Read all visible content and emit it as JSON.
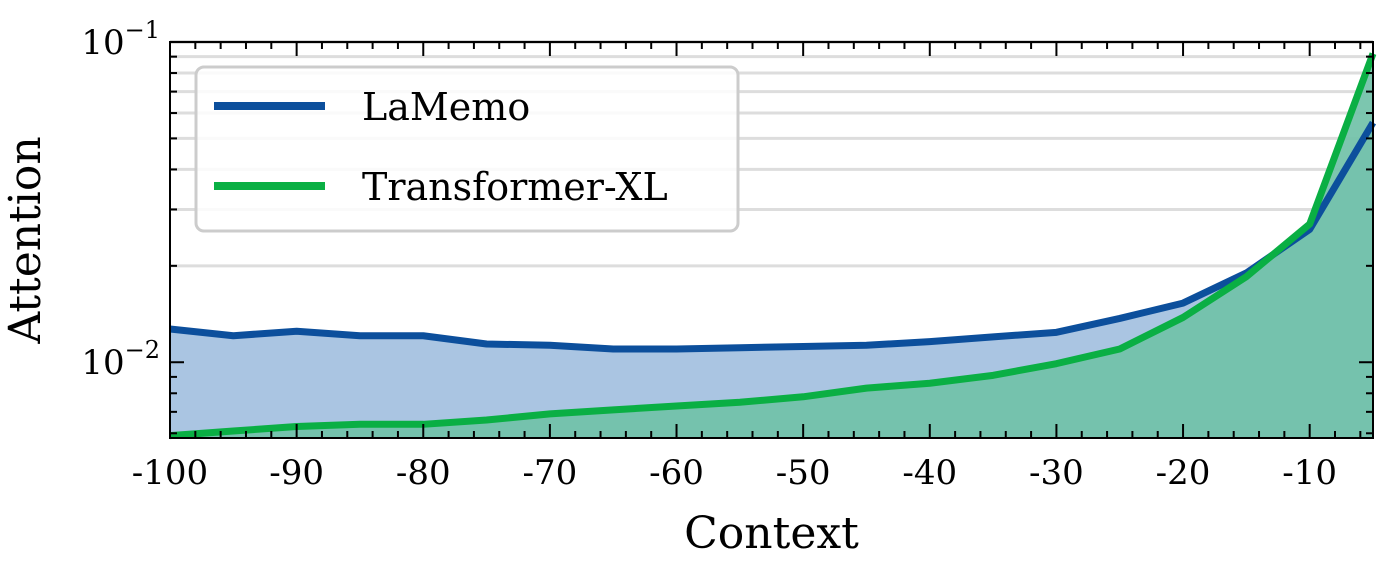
{
  "chart_data": {
    "type": "area",
    "xlabel": "Context",
    "ylabel": "Attention",
    "yscale": "log",
    "xlim": [
      -100,
      -5
    ],
    "ylim": [
      0.0058,
      0.1
    ],
    "x_ticks": [
      -100,
      -90,
      -80,
      -70,
      -60,
      -50,
      -40,
      -30,
      -20,
      -10
    ],
    "x_tick_labels": [
      "-100",
      "-90",
      "-80",
      "-70",
      "-60",
      "-50",
      "-40",
      "-30",
      "-20",
      "-10"
    ],
    "y_ticks": [
      {
        "value": 0.01,
        "base": "10",
        "exp": "−2"
      },
      {
        "value": 0.1,
        "base": "10",
        "exp": "−1"
      }
    ],
    "grid": true,
    "legend": {
      "position": "top-left"
    },
    "x": [
      -100,
      -95,
      -90,
      -85,
      -80,
      -75,
      -70,
      -65,
      -60,
      -55,
      -50,
      -45,
      -40,
      -35,
      -30,
      -25,
      -20,
      -15,
      -10,
      -5
    ],
    "series": [
      {
        "name": "LaMemo",
        "color": "#0c4f9c",
        "fill": "#aac5e2",
        "values": [
          0.0127,
          0.0121,
          0.0125,
          0.0121,
          0.0121,
          0.0114,
          0.0113,
          0.011,
          0.011,
          0.0111,
          0.0112,
          0.0113,
          0.0116,
          0.012,
          0.0124,
          0.0137,
          0.0153,
          0.019,
          0.026,
          0.056
        ]
      },
      {
        "name": "Transformer-XL",
        "color": "#0aaf44",
        "fill": "#71c1a8",
        "values": [
          0.0059,
          0.0061,
          0.0063,
          0.0064,
          0.0064,
          0.0066,
          0.0069,
          0.0071,
          0.0073,
          0.0075,
          0.0078,
          0.0083,
          0.0086,
          0.0091,
          0.0099,
          0.011,
          0.0138,
          0.0185,
          0.027,
          0.092
        ]
      }
    ]
  }
}
